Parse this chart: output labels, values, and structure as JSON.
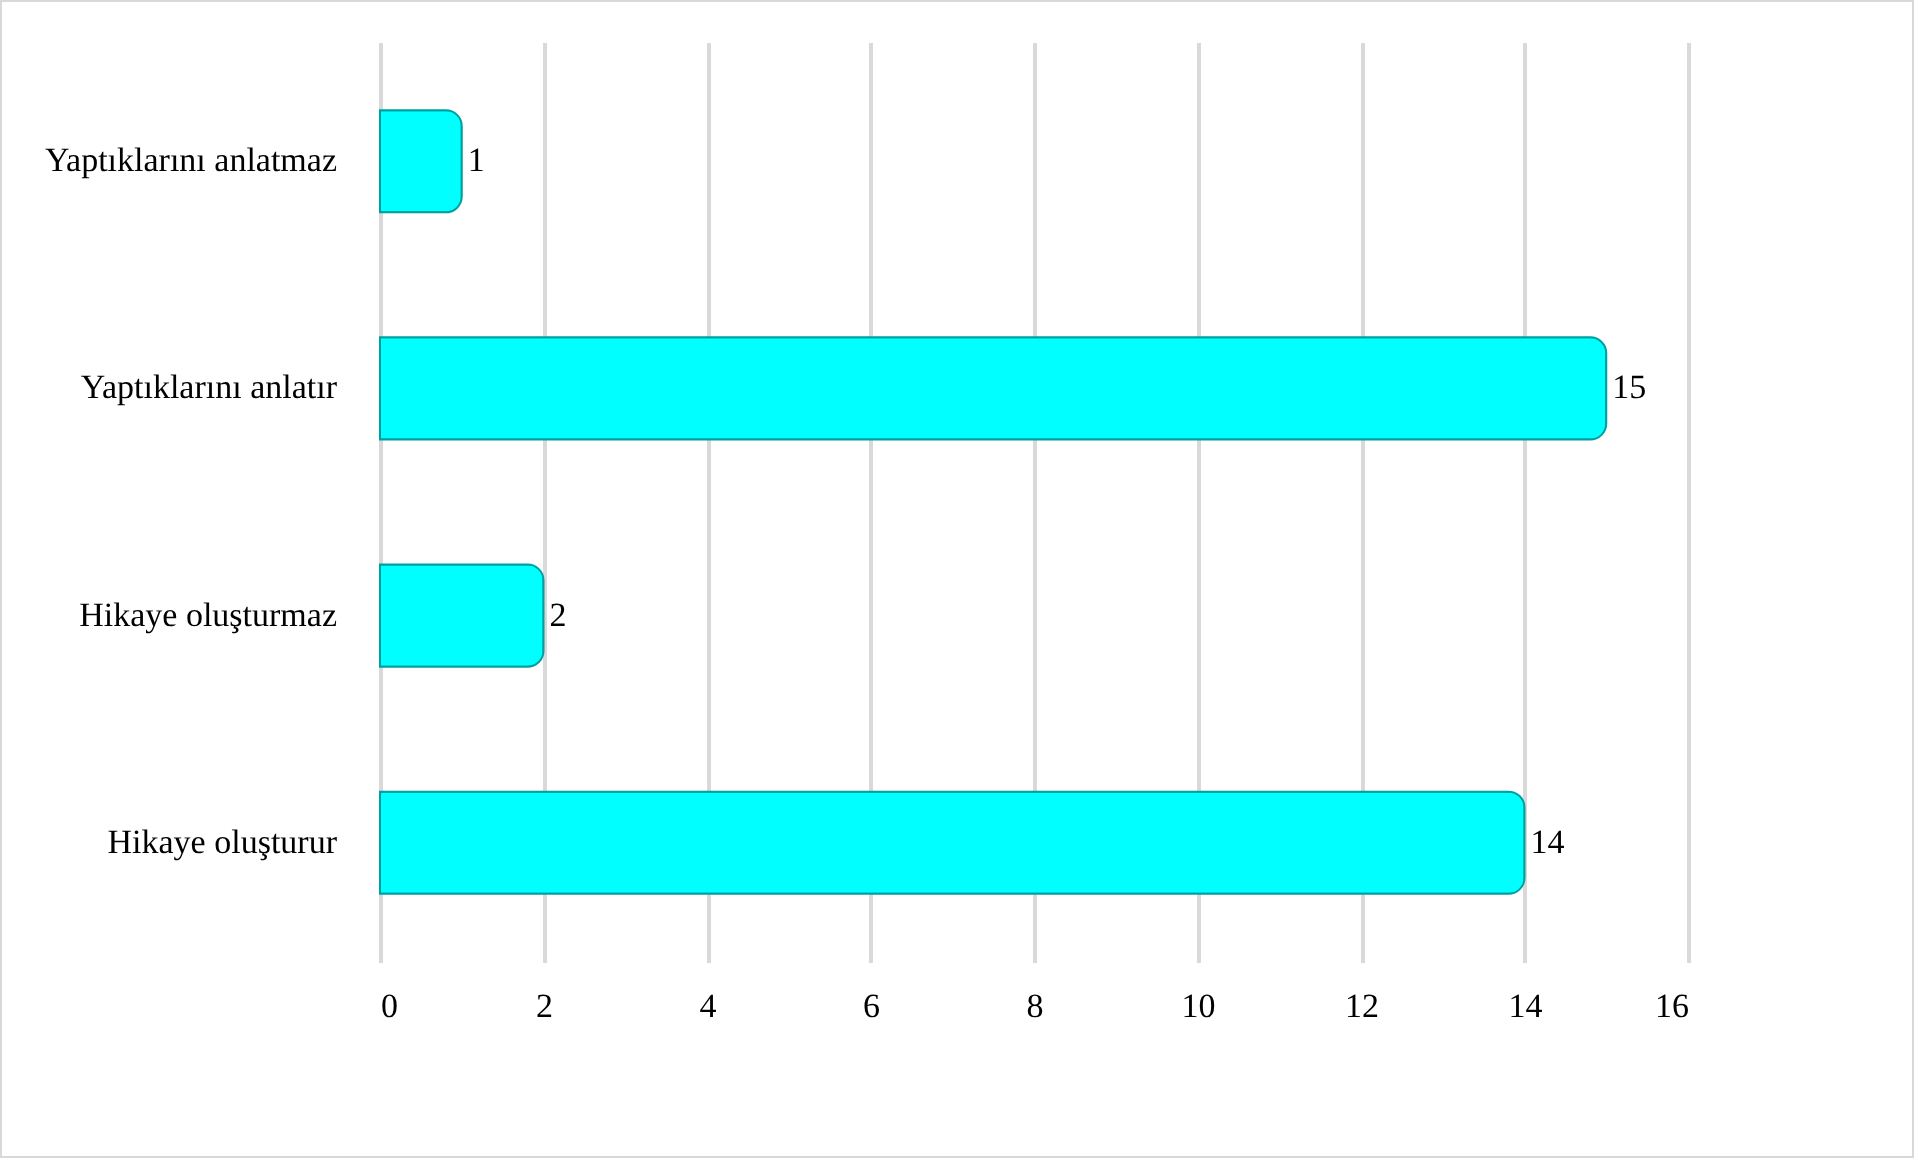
{
  "chart_data": {
    "type": "bar",
    "orientation": "horizontal",
    "categories": [
      "Yaptıklarını anlatmaz",
      "Yaptıklarını anlatır",
      "Hikaye oluşturmaz",
      "Hikaye oluşturur"
    ],
    "values": [
      1,
      15,
      2,
      14
    ],
    "color": "#00ffff",
    "xlim": [
      0,
      16
    ],
    "xticks": [
      0,
      2,
      4,
      6,
      8,
      10,
      12,
      14,
      16
    ],
    "grid": "x",
    "data_labels": true
  }
}
